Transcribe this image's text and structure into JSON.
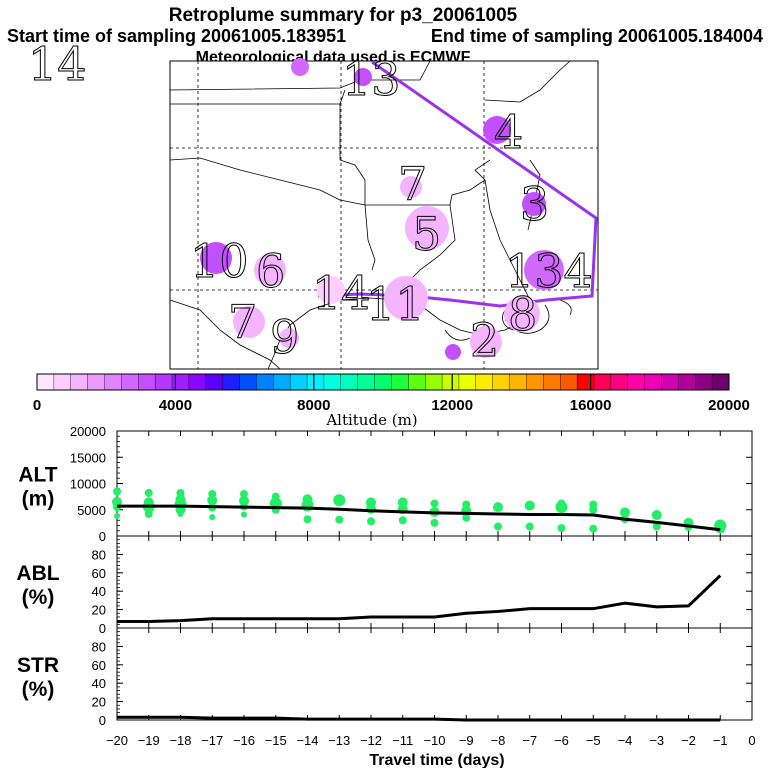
{
  "header": {
    "title": "Retroplume summary for p3_20061005",
    "start": "Start time of sampling 20061005.183951",
    "end": "End time of sampling 20061005.184004",
    "met": "Meteorological data used is ECMWF"
  },
  "colorbar": {
    "label": "Altitude (m)",
    "ticks": [
      "0",
      "4000",
      "8000",
      "12000",
      "16000",
      "20000"
    ],
    "min": 0,
    "max": 20000,
    "colors": [
      "#ffe6ff",
      "#ffcdff",
      "#f5b4ff",
      "#eb9bff",
      "#e182ff",
      "#d269ff",
      "#c350ff",
      "#b437ff",
      "#a01eff",
      "#8c05ff",
      "#5a00ff",
      "#1e1eff",
      "#0050ff",
      "#0082ff",
      "#00aaff",
      "#00d2ff",
      "#00f0ff",
      "#00ffe1",
      "#00ffbe",
      "#00ff96",
      "#00ff6e",
      "#1eff3c",
      "#5aff14",
      "#96ff00",
      "#c8ff00",
      "#f0ff00",
      "#ffeb00",
      "#ffd200",
      "#ffb400",
      "#ff9600",
      "#ff7800",
      "#ff5a00",
      "#ff0000",
      "#ff0050",
      "#ff0082",
      "#ff00aa",
      "#f000b4",
      "#d200b4",
      "#b4009b",
      "#8c0082",
      "#6e006e"
    ]
  },
  "map": {
    "plumes": [
      {
        "label": "14",
        "altitude": 2500
      },
      {
        "label": "13",
        "altitude": 3000
      },
      {
        "label": "4",
        "altitude": 3400
      },
      {
        "label": "7",
        "altitude": 1200
      },
      {
        "label": "3",
        "altitude": 3100
      },
      {
        "label": "5",
        "altitude": 1200
      },
      {
        "label": "10",
        "altitude": 3300
      },
      {
        "label": "6",
        "altitude": 1100
      },
      {
        "label": "14",
        "altitude": 900
      },
      {
        "label": "11",
        "altitude": 1000
      },
      {
        "label": "134",
        "altitude": 2600
      },
      {
        "label": "7",
        "altitude": 1200
      },
      {
        "label": "9",
        "altitude": 1300
      },
      {
        "label": "2",
        "altitude": 1400
      },
      {
        "label": "8",
        "altitude": 1000
      }
    ]
  },
  "xaxis": {
    "label": "Travel time (days)",
    "ticks": [
      "−20",
      "−19",
      "−18",
      "−17",
      "−16",
      "−15",
      "−14",
      "−13",
      "−12",
      "−11",
      "−10",
      "−9",
      "−8",
      "−7",
      "−6",
      "−5",
      "−4",
      "−3",
      "−2",
      "−1",
      "0"
    ]
  },
  "chart_data": [
    {
      "type": "scatter",
      "title": "ALT (m)",
      "panel_label_top": "ALT",
      "panel_label_bottom": "(m)",
      "xlabel": "Travel time (days)",
      "ylabel": "ALT (m)",
      "xlim": [
        -20,
        0
      ],
      "ylim": [
        0,
        20000
      ],
      "yticks": [
        "20000",
        "15000",
        "10000",
        "5000",
        "0"
      ],
      "mean_line": {
        "x": [
          -20,
          -19,
          -18,
          -17,
          -16,
          -15,
          -14,
          -13,
          -12,
          -11,
          -10,
          -9,
          -8,
          -7,
          -6,
          -5,
          -4,
          -3,
          -2,
          -1
        ],
        "y": [
          5700,
          5700,
          5700,
          5600,
          5500,
          5400,
          5300,
          5100,
          4800,
          4600,
          4400,
          4300,
          4200,
          4100,
          4100,
          4000,
          3200,
          2600,
          1900,
          1200
        ]
      },
      "points": {
        "x": [
          -20,
          -20,
          -20,
          -20,
          -19,
          -19,
          -19,
          -19,
          -18,
          -18,
          -18,
          -18,
          -18,
          -17,
          -17,
          -17,
          -17,
          -16,
          -16,
          -16,
          -16,
          -15,
          -15,
          -15,
          -14,
          -14,
          -14,
          -13,
          -13,
          -12,
          -12,
          -12,
          -11,
          -11,
          -11,
          -10,
          -10,
          -10,
          -9,
          -9,
          -9,
          -8,
          -8,
          -7,
          -7,
          -6,
          -6,
          -6,
          -5,
          -5,
          -5,
          -4,
          -4,
          -3,
          -3,
          -2,
          -2,
          -1,
          -1
        ],
        "y": [
          8500,
          6500,
          5500,
          3800,
          8200,
          6400,
          5600,
          4200,
          8200,
          7000,
          6000,
          5000,
          4200,
          8000,
          6800,
          5400,
          3600,
          8000,
          6700,
          5600,
          4100,
          7500,
          6200,
          5000,
          7000,
          5800,
          3200,
          6800,
          3100,
          6400,
          5200,
          2800,
          6400,
          5100,
          3000,
          6200,
          4600,
          2500,
          6000,
          4800,
          3500,
          5500,
          1800,
          5800,
          1800,
          6200,
          5500,
          1500,
          6000,
          5000,
          1400,
          4500,
          3200,
          4000,
          1800,
          2500,
          1700,
          2000,
          1400
        ],
        "size": [
          4,
          5,
          4,
          3,
          4,
          5,
          6,
          4,
          4,
          5,
          6,
          5,
          3,
          4,
          5,
          4,
          3,
          4,
          5,
          4,
          3,
          4,
          6,
          4,
          5,
          6,
          4,
          6,
          4,
          5,
          5,
          4,
          5,
          5,
          4,
          4,
          5,
          4,
          4,
          5,
          4,
          5,
          4,
          5,
          4,
          4,
          6,
          4,
          4,
          4,
          4,
          5,
          4,
          5,
          4,
          5,
          4,
          6,
          5
        ]
      }
    },
    {
      "type": "line",
      "title": "ABL (%)",
      "panel_label_top": "ABL",
      "panel_label_bottom": "(%)",
      "xlabel": "Travel time (days)",
      "ylabel": "ABL (%)",
      "xlim": [
        -20,
        0
      ],
      "ylim": [
        0,
        100
      ],
      "yticks": [
        "80",
        "60",
        "40",
        "20",
        "0"
      ],
      "x": [
        -20,
        -19,
        -18,
        -17,
        -16,
        -15,
        -14,
        -13,
        -12,
        -11,
        -10,
        -9,
        -8,
        -7,
        -6,
        -5,
        -4,
        -3,
        -2,
        -1
      ],
      "y": [
        7,
        7,
        8,
        10,
        10,
        10,
        10,
        10,
        12,
        12,
        12,
        16,
        18,
        21,
        21,
        21,
        27,
        23,
        24,
        57
      ]
    },
    {
      "type": "line",
      "title": "STR (%)",
      "panel_label_top": "STR",
      "panel_label_bottom": "(%)",
      "xlabel": "Travel time (days)",
      "ylabel": "STR (%)",
      "xlim": [
        -20,
        0
      ],
      "ylim": [
        0,
        100
      ],
      "yticks": [
        "80",
        "60",
        "40",
        "20",
        "0"
      ],
      "x": [
        -20,
        -19,
        -18,
        -17,
        -16,
        -15,
        -14,
        -13,
        -12,
        -11,
        -10,
        -9,
        -8,
        -7,
        -6,
        -5,
        -4,
        -3,
        -2,
        -1
      ],
      "y": [
        3,
        3,
        3,
        2,
        2,
        2,
        1,
        1,
        1,
        1,
        1,
        0,
        0,
        0,
        0,
        0,
        0,
        0,
        0,
        0
      ]
    }
  ]
}
